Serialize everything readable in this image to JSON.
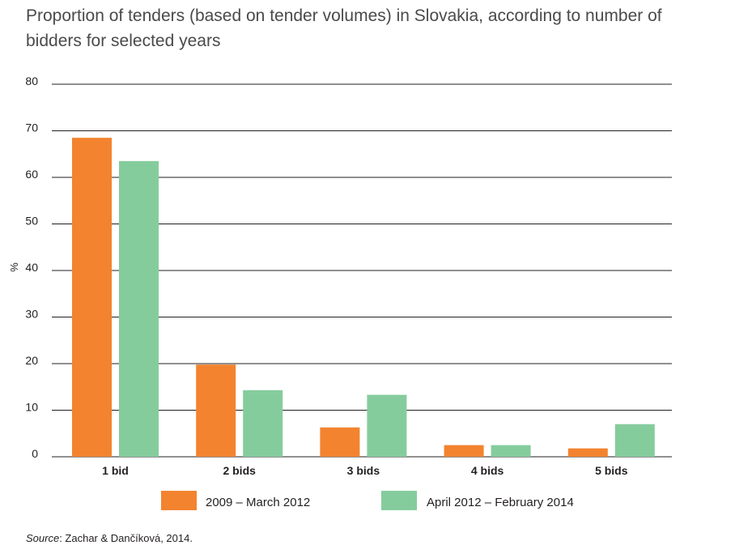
{
  "title": "Proportion of tenders (based on tender volumes) in Slovakia, according to number of bidders for selected years",
  "source": {
    "lead": "Source",
    "text": ": Zachar & Dančíková, 2014."
  },
  "chart_data": {
    "type": "bar",
    "title": "Proportion of tenders (based on tender volumes) in Slovakia, according to number of bidders for selected years",
    "xlabel": "",
    "ylabel": "%",
    "ylim": [
      0,
      80
    ],
    "yticks": [
      "0",
      "10",
      "20",
      "30",
      "40",
      "50",
      "60",
      "70",
      "80"
    ],
    "grid": true,
    "legend_position": "bottom",
    "categories": [
      "1 bid",
      "2 bids",
      "3 bids",
      "4 bids",
      "5 bids"
    ],
    "series": [
      {
        "name": "2009 – March 2012",
        "color": "#f3832f",
        "values": [
          68.5,
          19.8,
          6.3,
          2.5,
          1.8
        ]
      },
      {
        "name": "April 2012 – February 2014",
        "color": "#85cc9d",
        "values": [
          63.5,
          14.3,
          13.3,
          2.5,
          7.0
        ]
      }
    ]
  }
}
